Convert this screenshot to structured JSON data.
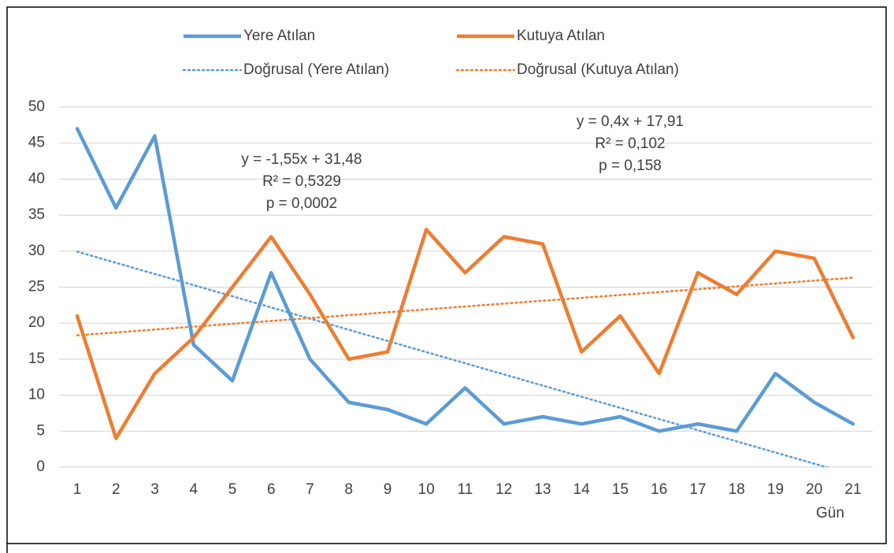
{
  "chart_data": {
    "type": "line",
    "x_label": "Gün",
    "categories": [
      "1",
      "2",
      "3",
      "4",
      "5",
      "6",
      "7",
      "8",
      "9",
      "10",
      "11",
      "12",
      "13",
      "14",
      "15",
      "16",
      "17",
      "18",
      "19",
      "20",
      "21"
    ],
    "series": [
      {
        "name": "Yere Atılan",
        "color": "#5b9bd5",
        "style": "solid",
        "values": [
          47,
          36,
          46,
          17,
          12,
          27,
          15,
          9,
          8,
          6,
          11,
          6,
          7,
          6,
          7,
          5,
          6,
          5,
          13,
          9,
          6
        ]
      },
      {
        "name": "Kutuya Atılan",
        "color": "#ed7d31",
        "style": "solid",
        "values": [
          21,
          4,
          13,
          18,
          25,
          32,
          24,
          15,
          16,
          33,
          27,
          32,
          31,
          16,
          21,
          13,
          27,
          24,
          30,
          29,
          18
        ]
      },
      {
        "name": "Doğrusal (Yere Atılan)",
        "color": "#5b9bd5",
        "style": "dotted",
        "values": [
          29.93,
          28.38,
          26.83,
          25.28,
          23.73,
          22.18,
          20.63,
          19.08,
          17.53,
          15.98,
          14.43,
          12.88,
          11.33,
          9.78,
          8.23,
          6.68,
          5.13,
          3.58,
          2.03,
          0.48,
          -1.07
        ]
      },
      {
        "name": "Doğrusal (Kutuya Atılan)",
        "color": "#ed7d31",
        "style": "dotted",
        "values": [
          18.31,
          18.71,
          19.11,
          19.51,
          19.91,
          20.31,
          20.71,
          21.11,
          21.51,
          21.91,
          22.31,
          22.71,
          23.11,
          23.51,
          23.91,
          24.31,
          24.71,
          25.11,
          25.51,
          25.91,
          26.31
        ]
      }
    ],
    "annotations": [
      [
        "y = -1,55x + 31,48",
        "R² = 0,5329",
        "p = 0,0002"
      ],
      [
        "y = 0,4x + 17,91",
        "R² = 0,102",
        "p = 0,158"
      ]
    ],
    "ylim": [
      0,
      50
    ],
    "yticks": [
      0,
      5,
      10,
      15,
      20,
      25,
      30,
      35,
      40,
      45,
      50
    ],
    "grid": true,
    "legend": "top"
  }
}
